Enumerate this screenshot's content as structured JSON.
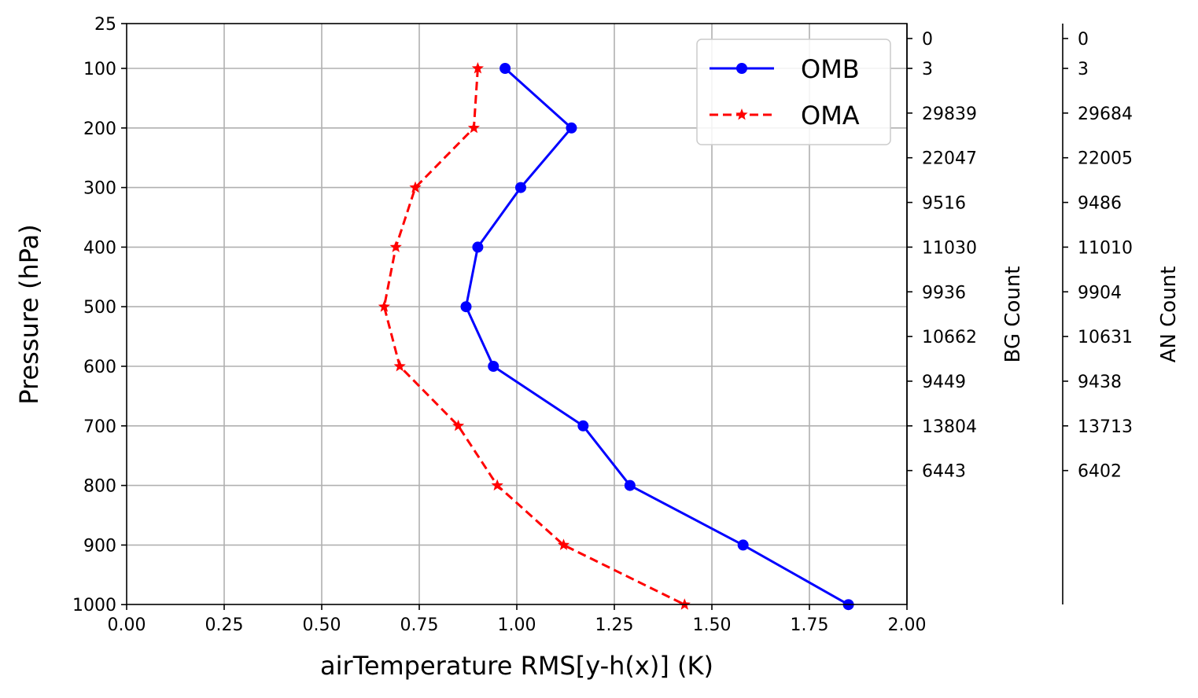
{
  "chart_data": {
    "type": "line",
    "xlabel": "airTemperature RMS[y-h(x)] (K)",
    "ylabel": "Pressure (hPa)",
    "xlim": [
      0.0,
      2.0
    ],
    "ylim": [
      1000,
      25
    ],
    "grid": true,
    "legend_position": "top-right",
    "x_ticks": [
      "0.00",
      "0.25",
      "0.50",
      "0.75",
      "1.00",
      "1.25",
      "1.50",
      "1.75",
      "2.00"
    ],
    "y_ticks": [
      "25",
      "100",
      "200",
      "300",
      "400",
      "500",
      "600",
      "700",
      "800",
      "900",
      "1000"
    ],
    "pressure_levels": [
      25,
      100,
      200,
      300,
      400,
      500,
      600,
      700,
      800,
      900,
      1000
    ],
    "series": [
      {
        "name": "OMB",
        "color": "#0000ff",
        "marker": "circle",
        "linestyle": "solid",
        "pressure": [
          100,
          200,
          300,
          400,
          500,
          600,
          700,
          800,
          900,
          1000
        ],
        "values": [
          0.97,
          1.14,
          1.01,
          0.9,
          0.87,
          0.94,
          1.17,
          1.29,
          1.58,
          1.85
        ]
      },
      {
        "name": "OMA",
        "color": "#ff0000",
        "marker": "star",
        "linestyle": "dashed",
        "pressure": [
          100,
          200,
          300,
          400,
          500,
          600,
          700,
          800,
          900,
          1000
        ],
        "values": [
          0.9,
          0.89,
          0.74,
          0.69,
          0.66,
          0.7,
          0.85,
          0.95,
          1.12,
          1.43
        ]
      }
    ],
    "bg_count": {
      "label": "BG Count",
      "ticks": [
        "0",
        "3",
        "29839",
        "22047",
        "9516",
        "11030",
        "9936",
        "10662",
        "9449",
        "13804",
        "6443"
      ]
    },
    "an_count": {
      "label": "AN Count",
      "ticks": [
        "0",
        "3",
        "29684",
        "22005",
        "9486",
        "11010",
        "9904",
        "10631",
        "9438",
        "13713",
        "6402"
      ]
    }
  }
}
